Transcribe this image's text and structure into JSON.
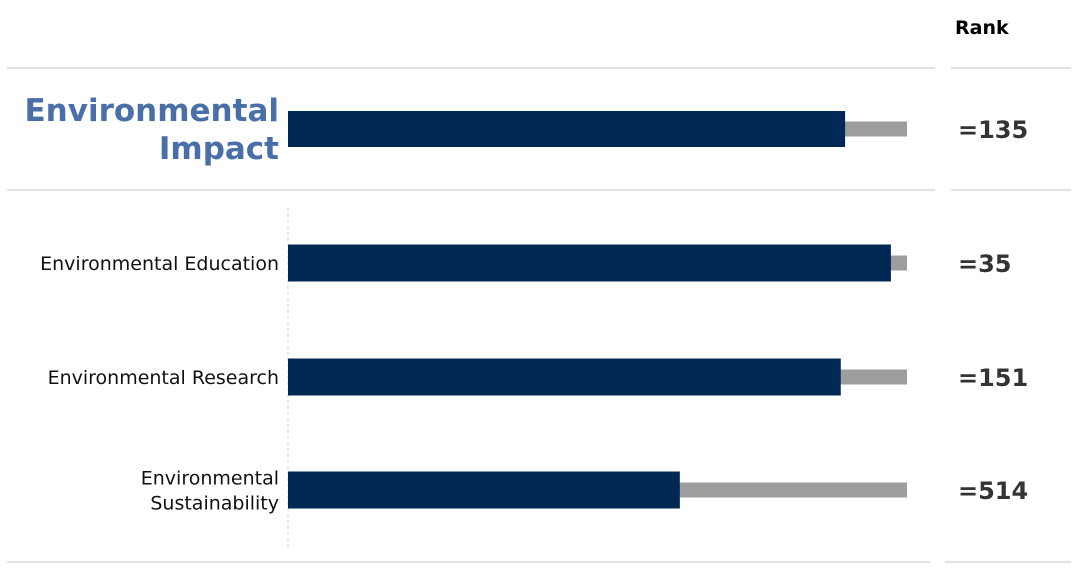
{
  "header": {
    "rank_label": "Rank"
  },
  "colors": {
    "bar": "#002855",
    "track": "#9d9d9d",
    "title": "#4a6fa8",
    "divider": "#d9d9d9",
    "axis": "#cccccc"
  },
  "chart_data": {
    "type": "bar",
    "orientation": "horizontal",
    "categories": [
      "Environmental Impact",
      "Environmental Education",
      "Environmental Research",
      "Environmental Sustainability"
    ],
    "label_lines": [
      [
        "Environmental",
        "Impact"
      ],
      [
        "Environmental Education"
      ],
      [
        "Environmental Research"
      ],
      [
        "Environmental",
        "Sustainability"
      ]
    ],
    "values": [
      0.9,
      0.974,
      0.893,
      0.633
    ],
    "max": 1.0,
    "ranks": [
      "=135",
      "=35",
      "=151",
      "=514"
    ],
    "xlabel": "",
    "ylabel": "",
    "grid": false,
    "legend": "none"
  }
}
